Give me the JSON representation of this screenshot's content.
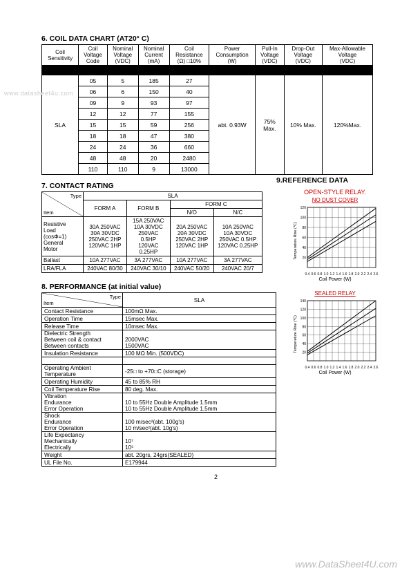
{
  "watermark_left": "www.datasheet4u.com",
  "watermark_bottom": "www.DataSheet4U.com",
  "page_number": "2",
  "section6": {
    "title": "6. COIL DATA CHART (AT20° C)",
    "headers": [
      "Coil\nSensitivity",
      "Coil\nVoltage\nCode",
      "Nominal\nVoltage\n(VDC)",
      "Nominal\nCurrent\n(mA)",
      "Coil\nResistance\n(Ω) □10%",
      "Power\nConsumption\n(W)",
      "Pull-In\nVoltage\n(VDC)",
      "Drop-Out\nVoltage\n(VDC)",
      "Max-Allowable\nVoltage\n(VDC)"
    ],
    "sensitivity": "SLA",
    "power": "abt. 0.93W",
    "pullin": "75%\nMax.",
    "dropout": "10% Max.",
    "maxallow": "120%Max.",
    "rows": [
      [
        "05",
        "5",
        "185",
        "27"
      ],
      [
        "06",
        "6",
        "150",
        "40"
      ],
      [
        "09",
        "9",
        "93",
        "97"
      ],
      [
        "12",
        "12",
        "77",
        "155"
      ],
      [
        "15",
        "15",
        "59",
        "256"
      ],
      [
        "18",
        "18",
        "47",
        "380"
      ],
      [
        "24",
        "24",
        "36",
        "660"
      ],
      [
        "48",
        "48",
        "20",
        "2480"
      ],
      [
        "110",
        "110",
        "9",
        "13000"
      ]
    ]
  },
  "section7": {
    "title": "7. CONTACT RATING",
    "type_label": "Type",
    "item_label": "Item",
    "relay": "SLA",
    "cols": [
      "FORM A",
      "FORM B",
      "FORM C"
    ],
    "formc_sub": [
      "N/O",
      "N/C"
    ],
    "rows": [
      {
        "item": "Resistive\nLoad\n(cosΦ=1)\nGeneral\nMotor",
        "a": "30A 250VAC\n30A 30VDC\n250VAC 2HP\n120VAC 1HP",
        "b": "15A 250VAC\n10A 30VDC\n250VAC\n0.5HP\n120VAC\n0.25HP",
        "no": "20A 250VAC\n20A 30VDC\n250VAC 2HP\n120VAC 1HP",
        "nc": "10A 250VAC\n10A 30VDC\n250VAC 0.5HP\n120VAC 0.25HP"
      },
      {
        "item": "Ballast",
        "a": "10A 277VAC",
        "b": "3A 277VAC",
        "no": "10A 277VAC",
        "nc": "3A 277VAC"
      },
      {
        "item": "LRA/FLA",
        "a": "240VAC 80/30",
        "b": "240VAC 30/10",
        "no": "240VAC 50/20",
        "nc": "240VAC 20/7"
      }
    ]
  },
  "section8": {
    "title": "8. PERFORMANCE (at initial value)",
    "type_label": "Type",
    "item_label": "Item",
    "relay": "SLA",
    "rows": [
      [
        "Contact Resistance",
        "100mΩ Max."
      ],
      [
        "Operation Time",
        "15msec Max."
      ],
      [
        "Release Time",
        "10msec Max."
      ],
      [
        "Dielectric Strength\nBetween coil & contact\nBetween contacts",
        "\n2000VAC\n1500VAC"
      ],
      [
        "Insulation Resistance",
        "100 MΩ Min. (500VDC)"
      ],
      [
        "",
        ""
      ],
      [
        "Operating Ambient\nTemperature",
        "-25□  to +70□C (storage)"
      ],
      [
        "Operating Humidity",
        "45 to 85% RH"
      ],
      [
        "Coil Temperature Rise",
        "80 deg. Max."
      ],
      [
        "Vibration\nEndurance\nError Operation",
        "\n10 to 55Hz Double Amplitude 1.5mm\n10 to 55Hz Double Amplitude 1.5mm"
      ],
      [
        "Shock\nEndurance\nError Operation",
        "\n100 m/sec²(abt. 100g's)\n10 m/sec²(abt. 10g's)"
      ],
      [
        "Life Expectancy\nMechanically\nElectrically",
        "\n10⁷\n10⁵"
      ],
      [
        "Weight",
        "abt. 20grs, 24grs(SEALED)"
      ],
      [
        "UL File No.",
        "E179944"
      ]
    ]
  },
  "section9": {
    "title": "9.REFERENCE DATA",
    "chart1_title": "OPEN-STYLE RELAY.",
    "chart1_sub": "NO DUST COVER",
    "chart2_sub": "SEALED RELAY",
    "xlabel": "Coil Power (W)",
    "ylabel": "Temperature Rise (℃)",
    "chart1": {
      "xticks": [
        "0.4",
        "0.6",
        "0.8",
        "1.0",
        "1.2",
        "1.4",
        "1.6",
        "1.8",
        "2.0",
        "2.2",
        "2.4",
        "2.6"
      ],
      "yticks": [
        "20",
        "40",
        "60",
        "80",
        "100",
        "120"
      ],
      "lines": [
        [
          [
            0.4,
            20
          ],
          [
            2.6,
            118
          ]
        ],
        [
          [
            0.4,
            16
          ],
          [
            2.6,
            105
          ]
        ],
        [
          [
            0.4,
            12
          ],
          [
            2.6,
            92
          ]
        ]
      ],
      "grid_color": "#000",
      "line_color": "#000"
    },
    "chart2": {
      "xticks": [
        "0.4",
        "0.6",
        "0.8",
        "1.0",
        "1.2",
        "1.4",
        "1.6",
        "1.8",
        "2.0",
        "2.2",
        "2.4",
        "2.6"
      ],
      "yticks": [
        "20",
        "40",
        "60",
        "80",
        "100",
        "120",
        "140"
      ],
      "lines": [
        [
          [
            0.4,
            22
          ],
          [
            2.6,
            140
          ]
        ],
        [
          [
            0.4,
            18
          ],
          [
            2.6,
            122
          ]
        ],
        [
          [
            0.4,
            14
          ],
          [
            2.6,
            105
          ]
        ]
      ],
      "grid_color": "#000",
      "line_color": "#000"
    }
  }
}
